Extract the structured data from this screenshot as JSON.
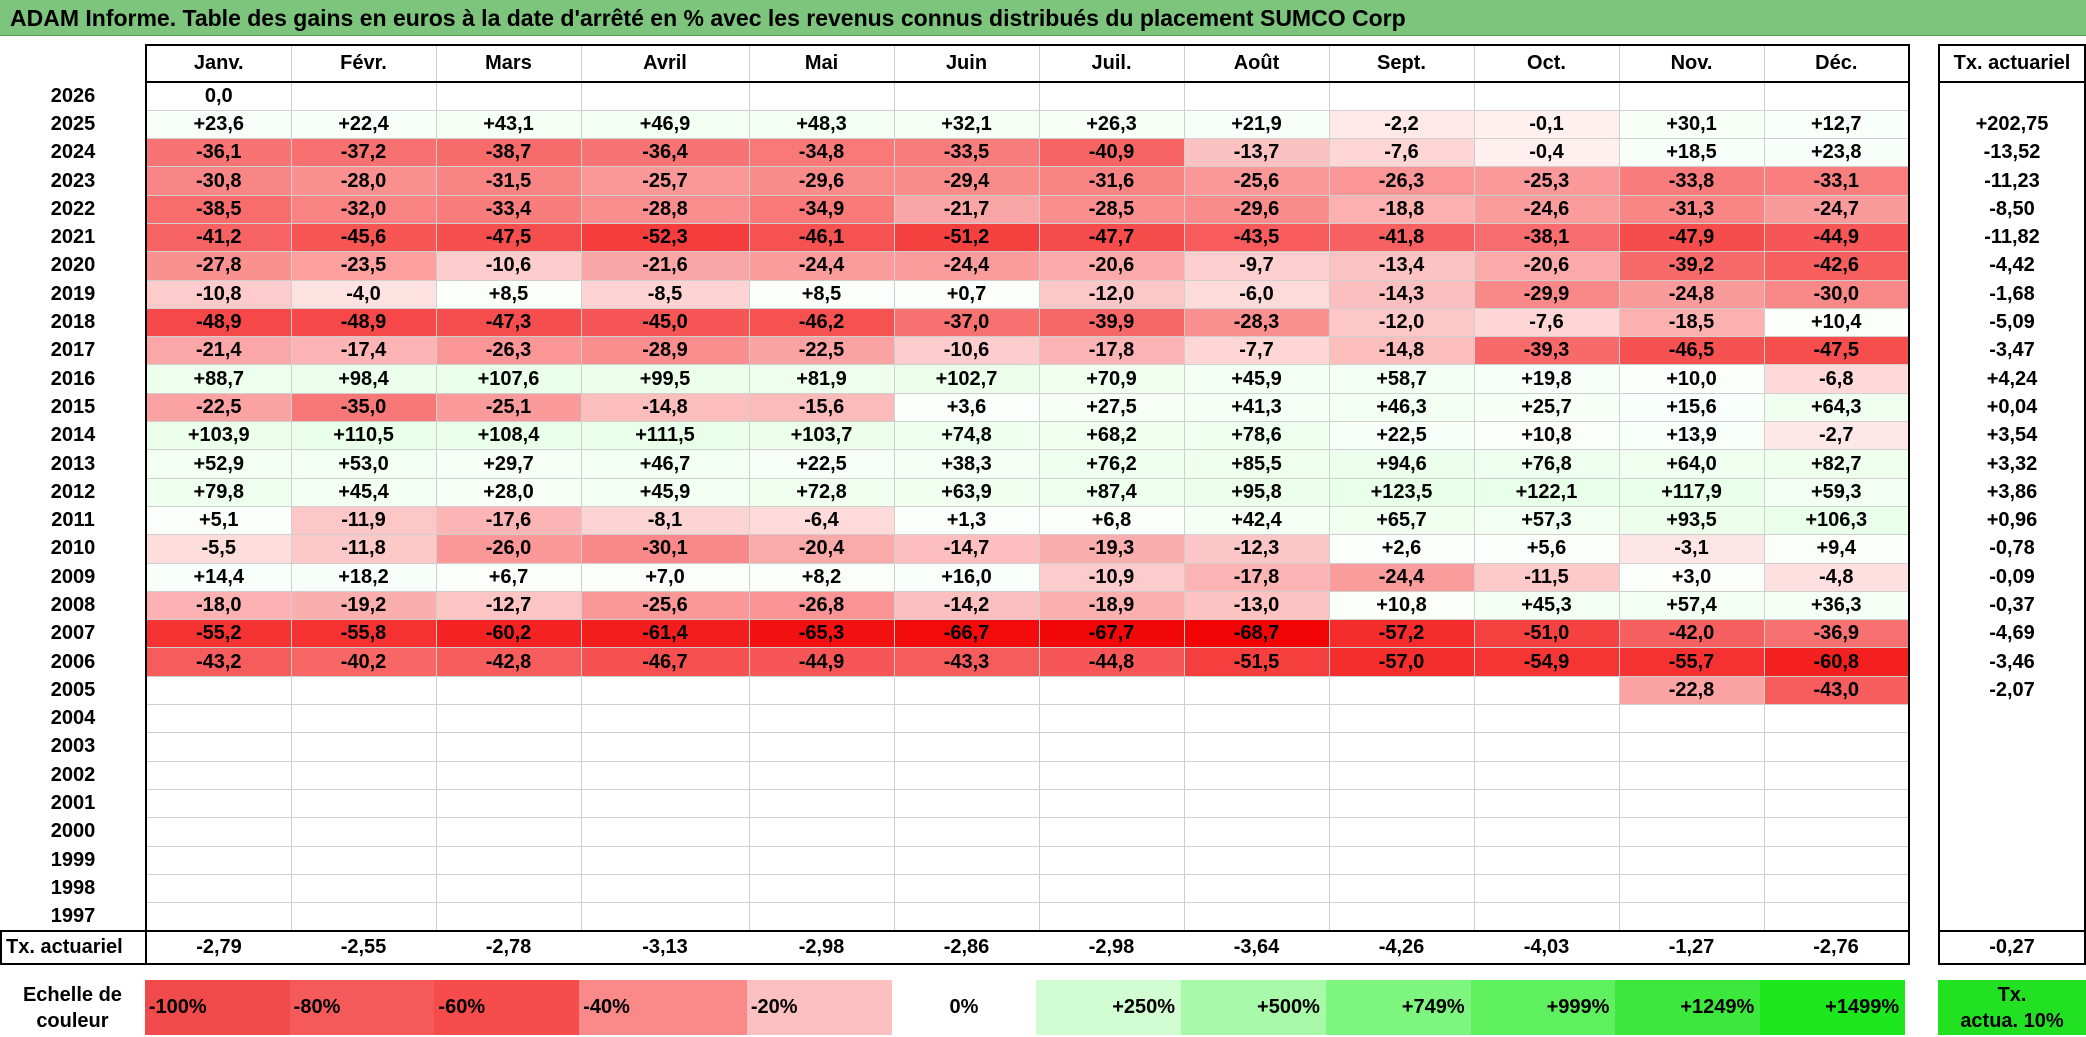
{
  "title": "ADAM Informe. Table des gains en euros à la date d'arrêté en % avec les revenus connus distribués du placement SUMCO Corp",
  "months": [
    "Janv.",
    "Févr.",
    "Mars",
    "Avril",
    "Mai",
    "Juin",
    "Juil.",
    "Août",
    "Sept.",
    "Oct.",
    "Nov.",
    "Déc."
  ],
  "side_header": "Tx. actuariel",
  "rows": [
    {
      "year": "2026",
      "values": [
        "0,0",
        "",
        "",
        "",
        "",
        "",
        "",
        "",
        "",
        "",
        "",
        ""
      ],
      "actuarial": ""
    },
    {
      "year": "2025",
      "values": [
        "+23,6",
        "+22,4",
        "+43,1",
        "+46,9",
        "+48,3",
        "+32,1",
        "+26,3",
        "+21,9",
        "-2,2",
        "-0,1",
        "+30,1",
        "+12,7"
      ],
      "actuarial": "+202,75"
    },
    {
      "year": "2024",
      "values": [
        "-36,1",
        "-37,2",
        "-38,7",
        "-36,4",
        "-34,8",
        "-33,5",
        "-40,9",
        "-13,7",
        "-7,6",
        "-0,4",
        "+18,5",
        "+23,8"
      ],
      "actuarial": "-13,52"
    },
    {
      "year": "2023",
      "values": [
        "-30,8",
        "-28,0",
        "-31,5",
        "-25,7",
        "-29,6",
        "-29,4",
        "-31,6",
        "-25,6",
        "-26,3",
        "-25,3",
        "-33,8",
        "-33,1"
      ],
      "actuarial": "-11,23"
    },
    {
      "year": "2022",
      "values": [
        "-38,5",
        "-32,0",
        "-33,4",
        "-28,8",
        "-34,9",
        "-21,7",
        "-28,5",
        "-29,6",
        "-18,8",
        "-24,6",
        "-31,3",
        "-24,7"
      ],
      "actuarial": "-8,50"
    },
    {
      "year": "2021",
      "values": [
        "-41,2",
        "-45,6",
        "-47,5",
        "-52,3",
        "-46,1",
        "-51,2",
        "-47,7",
        "-43,5",
        "-41,8",
        "-38,1",
        "-47,9",
        "-44,9"
      ],
      "actuarial": "-11,82"
    },
    {
      "year": "2020",
      "values": [
        "-27,8",
        "-23,5",
        "-10,6",
        "-21,6",
        "-24,4",
        "-24,4",
        "-20,6",
        "-9,7",
        "-13,4",
        "-20,6",
        "-39,2",
        "-42,6"
      ],
      "actuarial": "-4,42"
    },
    {
      "year": "2019",
      "values": [
        "-10,8",
        "-4,0",
        "+8,5",
        "-8,5",
        "+8,5",
        "+0,7",
        "-12,0",
        "-6,0",
        "-14,3",
        "-29,9",
        "-24,8",
        "-30,0"
      ],
      "actuarial": "-1,68"
    },
    {
      "year": "2018",
      "values": [
        "-48,9",
        "-48,9",
        "-47,3",
        "-45,0",
        "-46,2",
        "-37,0",
        "-39,9",
        "-28,3",
        "-12,0",
        "-7,6",
        "-18,5",
        "+10,4"
      ],
      "actuarial": "-5,09"
    },
    {
      "year": "2017",
      "values": [
        "-21,4",
        "-17,4",
        "-26,3",
        "-28,9",
        "-22,5",
        "-10,6",
        "-17,8",
        "-7,7",
        "-14,8",
        "-39,3",
        "-46,5",
        "-47,5"
      ],
      "actuarial": "-3,47"
    },
    {
      "year": "2016",
      "values": [
        "+88,7",
        "+98,4",
        "+107,6",
        "+99,5",
        "+81,9",
        "+102,7",
        "+70,9",
        "+45,9",
        "+58,7",
        "+19,8",
        "+10,0",
        "-6,8"
      ],
      "actuarial": "+4,24"
    },
    {
      "year": "2015",
      "values": [
        "-22,5",
        "-35,0",
        "-25,1",
        "-14,8",
        "-15,6",
        "+3,6",
        "+27,5",
        "+41,3",
        "+46,3",
        "+25,7",
        "+15,6",
        "+64,3"
      ],
      "actuarial": "+0,04"
    },
    {
      "year": "2014",
      "values": [
        "+103,9",
        "+110,5",
        "+108,4",
        "+111,5",
        "+103,7",
        "+74,8",
        "+68,2",
        "+78,6",
        "+22,5",
        "+10,8",
        "+13,9",
        "-2,7"
      ],
      "actuarial": "+3,54"
    },
    {
      "year": "2013",
      "values": [
        "+52,9",
        "+53,0",
        "+29,7",
        "+46,7",
        "+22,5",
        "+38,3",
        "+76,2",
        "+85,5",
        "+94,6",
        "+76,8",
        "+64,0",
        "+82,7"
      ],
      "actuarial": "+3,32"
    },
    {
      "year": "2012",
      "values": [
        "+79,8",
        "+45,4",
        "+28,0",
        "+45,9",
        "+72,8",
        "+63,9",
        "+87,4",
        "+95,8",
        "+123,5",
        "+122,1",
        "+117,9",
        "+59,3"
      ],
      "actuarial": "+3,86"
    },
    {
      "year": "2011",
      "values": [
        "+5,1",
        "-11,9",
        "-17,6",
        "-8,1",
        "-6,4",
        "+1,3",
        "+6,8",
        "+42,4",
        "+65,7",
        "+57,3",
        "+93,5",
        "+106,3"
      ],
      "actuarial": "+0,96"
    },
    {
      "year": "2010",
      "values": [
        "-5,5",
        "-11,8",
        "-26,0",
        "-30,1",
        "-20,4",
        "-14,7",
        "-19,3",
        "-12,3",
        "+2,6",
        "+5,6",
        "-3,1",
        "+9,4"
      ],
      "actuarial": "-0,78"
    },
    {
      "year": "2009",
      "values": [
        "+14,4",
        "+18,2",
        "+6,7",
        "+7,0",
        "+8,2",
        "+16,0",
        "-10,9",
        "-17,8",
        "-24,4",
        "-11,5",
        "+3,0",
        "-4,8"
      ],
      "actuarial": "-0,09"
    },
    {
      "year": "2008",
      "values": [
        "-18,0",
        "-19,2",
        "-12,7",
        "-25,6",
        "-26,8",
        "-14,2",
        "-18,9",
        "-13,0",
        "+10,8",
        "+45,3",
        "+57,4",
        "+36,3"
      ],
      "actuarial": "-0,37"
    },
    {
      "year": "2007",
      "values": [
        "-55,2",
        "-55,8",
        "-60,2",
        "-61,4",
        "-65,3",
        "-66,7",
        "-67,7",
        "-68,7",
        "-57,2",
        "-51,0",
        "-42,0",
        "-36,9"
      ],
      "actuarial": "-4,69"
    },
    {
      "year": "2006",
      "values": [
        "-43,2",
        "-40,2",
        "-42,8",
        "-46,7",
        "-44,9",
        "-43,3",
        "-44,8",
        "-51,5",
        "-57,0",
        "-54,9",
        "-55,7",
        "-60,8"
      ],
      "actuarial": "-3,46"
    },
    {
      "year": "2005",
      "values": [
        "",
        "",
        "",
        "",
        "",
        "",
        "",
        "",
        "",
        "",
        "-22,8",
        "-43,0"
      ],
      "actuarial": "-2,07"
    },
    {
      "year": "2004",
      "values": [
        "",
        "",
        "",
        "",
        "",
        "",
        "",
        "",
        "",
        "",
        "",
        ""
      ],
      "actuarial": ""
    },
    {
      "year": "2003",
      "values": [
        "",
        "",
        "",
        "",
        "",
        "",
        "",
        "",
        "",
        "",
        "",
        ""
      ],
      "actuarial": ""
    },
    {
      "year": "2002",
      "values": [
        "",
        "",
        "",
        "",
        "",
        "",
        "",
        "",
        "",
        "",
        "",
        ""
      ],
      "actuarial": ""
    },
    {
      "year": "2001",
      "values": [
        "",
        "",
        "",
        "",
        "",
        "",
        "",
        "",
        "",
        "",
        "",
        ""
      ],
      "actuarial": ""
    },
    {
      "year": "2000",
      "values": [
        "",
        "",
        "",
        "",
        "",
        "",
        "",
        "",
        "",
        "",
        "",
        ""
      ],
      "actuarial": ""
    },
    {
      "year": "1999",
      "values": [
        "",
        "",
        "",
        "",
        "",
        "",
        "",
        "",
        "",
        "",
        "",
        ""
      ],
      "actuarial": ""
    },
    {
      "year": "1998",
      "values": [
        "",
        "",
        "",
        "",
        "",
        "",
        "",
        "",
        "",
        "",
        "",
        ""
      ],
      "actuarial": ""
    },
    {
      "year": "1997",
      "values": [
        "",
        "",
        "",
        "",
        "",
        "",
        "",
        "",
        "",
        "",
        "",
        ""
      ],
      "actuarial": ""
    }
  ],
  "footer": {
    "label": "Tx. actuariel",
    "values": [
      "-2,79",
      "-2,55",
      "-2,78",
      "-3,13",
      "-2,98",
      "-2,86",
      "-2,98",
      "-3,64",
      "-4,26",
      "-4,03",
      "-1,27",
      "-2,76"
    ],
    "total": "-0,27"
  },
  "legend": {
    "label_line1": "Echelle de",
    "label_line2": "couleur",
    "steps": [
      {
        "text": "-100%",
        "color": "#f04a4a"
      },
      {
        "text": "-80%",
        "color": "#f45a5a"
      },
      {
        "text": "-60%",
        "color": "#f74c4c"
      },
      {
        "text": "-40%",
        "color": "#fa8a8a"
      },
      {
        "text": "-20%",
        "color": "#fcc0c0"
      },
      {
        "text": "0%",
        "color": "#ffffff"
      },
      {
        "text": "+250%",
        "color": "#d2fcd2"
      },
      {
        "text": "+500%",
        "color": "#a8faa8"
      },
      {
        "text": "+749%",
        "color": "#7ef57e"
      },
      {
        "text": "+999%",
        "color": "#5ef05e"
      },
      {
        "text": "+1249%",
        "color": "#3be83b"
      },
      {
        "text": "+1499%",
        "color": "#1de81d"
      }
    ],
    "actuarial_line1": "Tx.",
    "actuarial_line2": "actua. 10%",
    "actuarial_color": "#22e022"
  },
  "colors": {
    "title_bg": "#7dc47d",
    "negative_max": "#f20000",
    "positive_max": "#00e600"
  }
}
